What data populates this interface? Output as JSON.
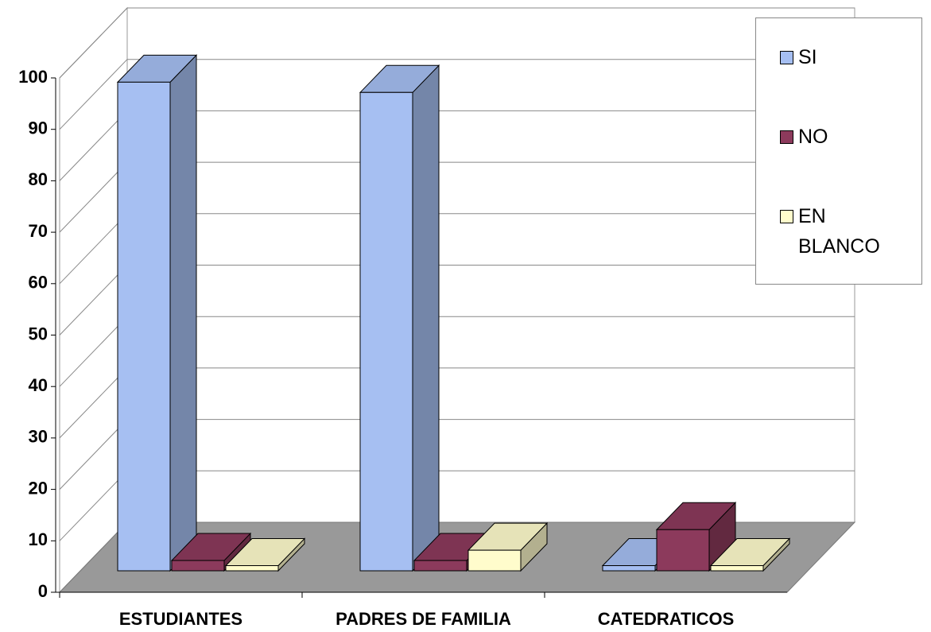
{
  "chart_data": {
    "type": "bar3d",
    "categories": [
      "ESTUDIANTES",
      "PADRES DE FAMILIA",
      "CATEDRATICOS"
    ],
    "series": [
      {
        "name": "SI",
        "color": "#a6bff2",
        "values": [
          95,
          93,
          1
        ]
      },
      {
        "name": "NO",
        "color": "#8c3a5c",
        "values": [
          2,
          2,
          8
        ]
      },
      {
        "name": "EN BLANCO",
        "color": "#fffccc",
        "values": [
          1,
          4,
          1
        ]
      }
    ],
    "ylim": [
      0,
      100
    ],
    "yticks": [
      0,
      10,
      20,
      30,
      40,
      50,
      60,
      70,
      80,
      90,
      100
    ],
    "grid": true,
    "legend": "right"
  }
}
